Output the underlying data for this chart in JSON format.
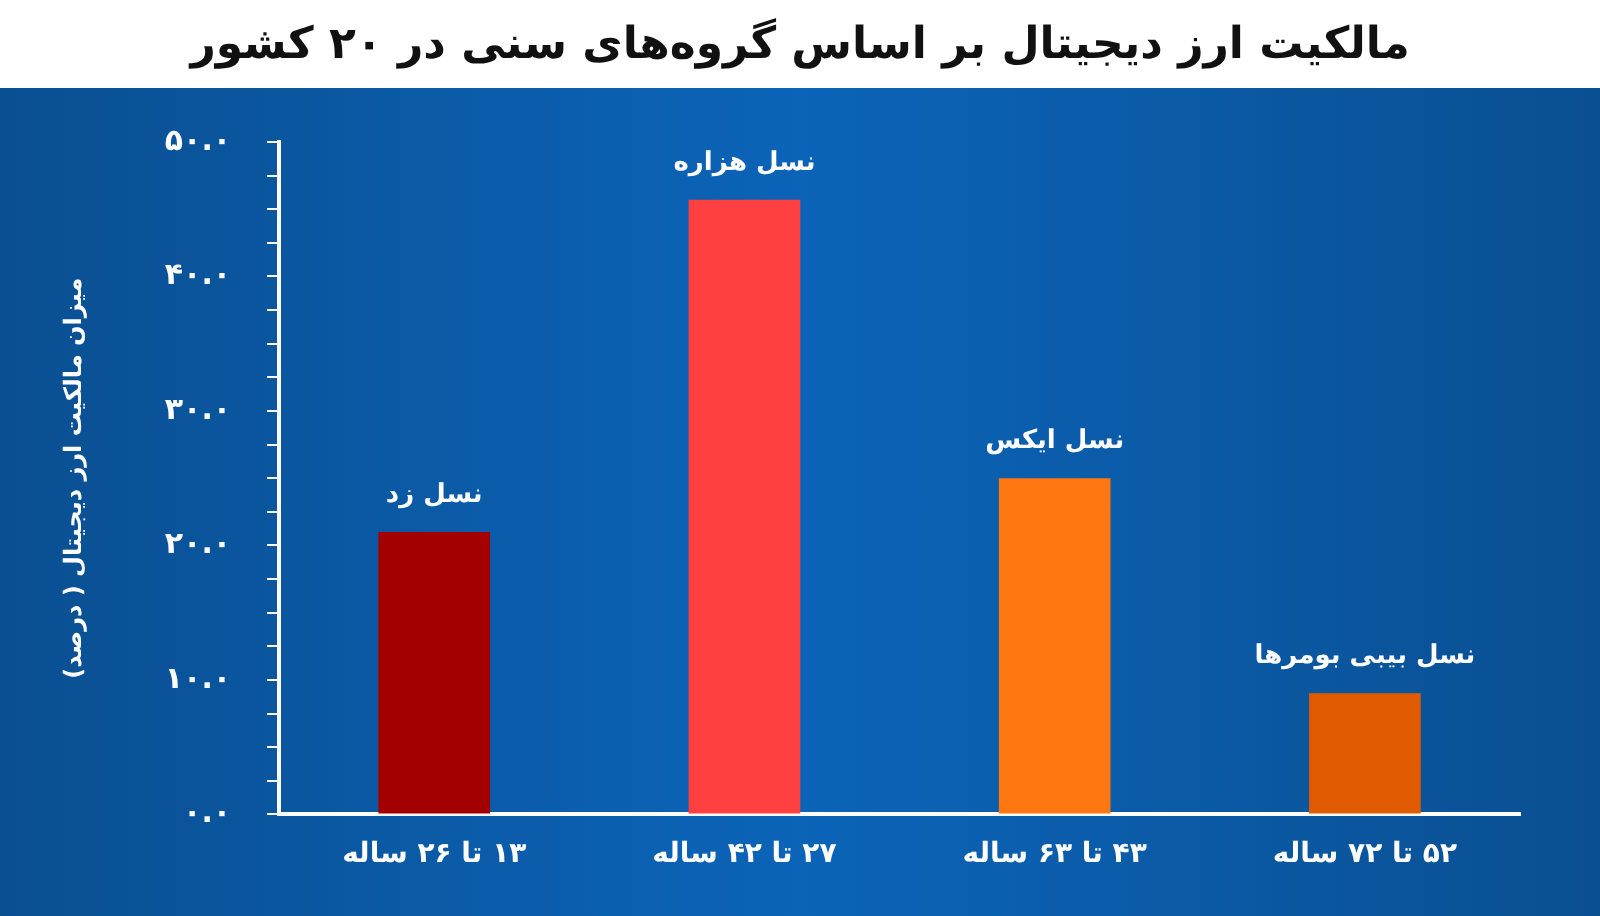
{
  "chart_data": {
    "type": "bar",
    "title": "مالکیت ارز دیجیتال بر اساس گروه‌های سنی در ۲۰ کشور",
    "ylabel": "میزان مالکیت ارز دیجیتال ( درصد)",
    "categories": [
      "۱۳ تا ۲۶ ساله",
      "۲۷ تا ۴۲ ساله",
      "۴۳ تا ۶۳ ساله",
      "۵۲ تا ۷۲ ساله"
    ],
    "values": [
      21,
      45.7,
      25,
      9
    ],
    "colors": [
      "#a30000",
      "#ff4040",
      "#ff7710",
      "#e05a00"
    ],
    "ylim": [
      0,
      50
    ],
    "yticks": [
      {
        "value": 0,
        "label": "۰.۰"
      },
      {
        "value": 2.5,
        "label": null
      },
      {
        "value": 5,
        "label": null
      },
      {
        "value": 7.5,
        "label": null
      },
      {
        "value": 10,
        "label": "۱۰.۰"
      },
      {
        "value": 12.5,
        "label": null
      },
      {
        "value": 15,
        "label": null
      },
      {
        "value": 17.5,
        "label": null
      },
      {
        "value": 20,
        "label": "۲۰.۰"
      },
      {
        "value": 22.5,
        "label": null
      },
      {
        "value": 25,
        "label": null
      },
      {
        "value": 27.5,
        "label": null
      },
      {
        "value": 30,
        "label": "۳۰.۰"
      },
      {
        "value": 32.5,
        "label": null
      },
      {
        "value": 35,
        "label": null
      },
      {
        "value": 37.5,
        "label": null
      },
      {
        "value": 40,
        "label": "۴۰.۰"
      },
      {
        "value": 42.5,
        "label": null
      },
      {
        "value": 45,
        "label": null
      },
      {
        "value": 47.5,
        "label": null
      },
      {
        "value": 50,
        "label": "۵۰.۰"
      }
    ],
    "annotations": [
      {
        "text": "نسل زد",
        "x": "۱۳ تا ۲۶ ساله",
        "y": 21
      },
      {
        "text": "نسل هزاره",
        "x": "۲۷ تا ۴۲ ساله",
        "y": 45.7
      },
      {
        "text": "نسل ایکس",
        "x": "۴۳ تا ۶۳ ساله",
        "y": 25
      },
      {
        "text": "نسل بیبی بومرها",
        "x": "۵۲ تا ۷۲ ساله",
        "y": 9
      }
    ],
    "grid": false,
    "legend": false
  }
}
